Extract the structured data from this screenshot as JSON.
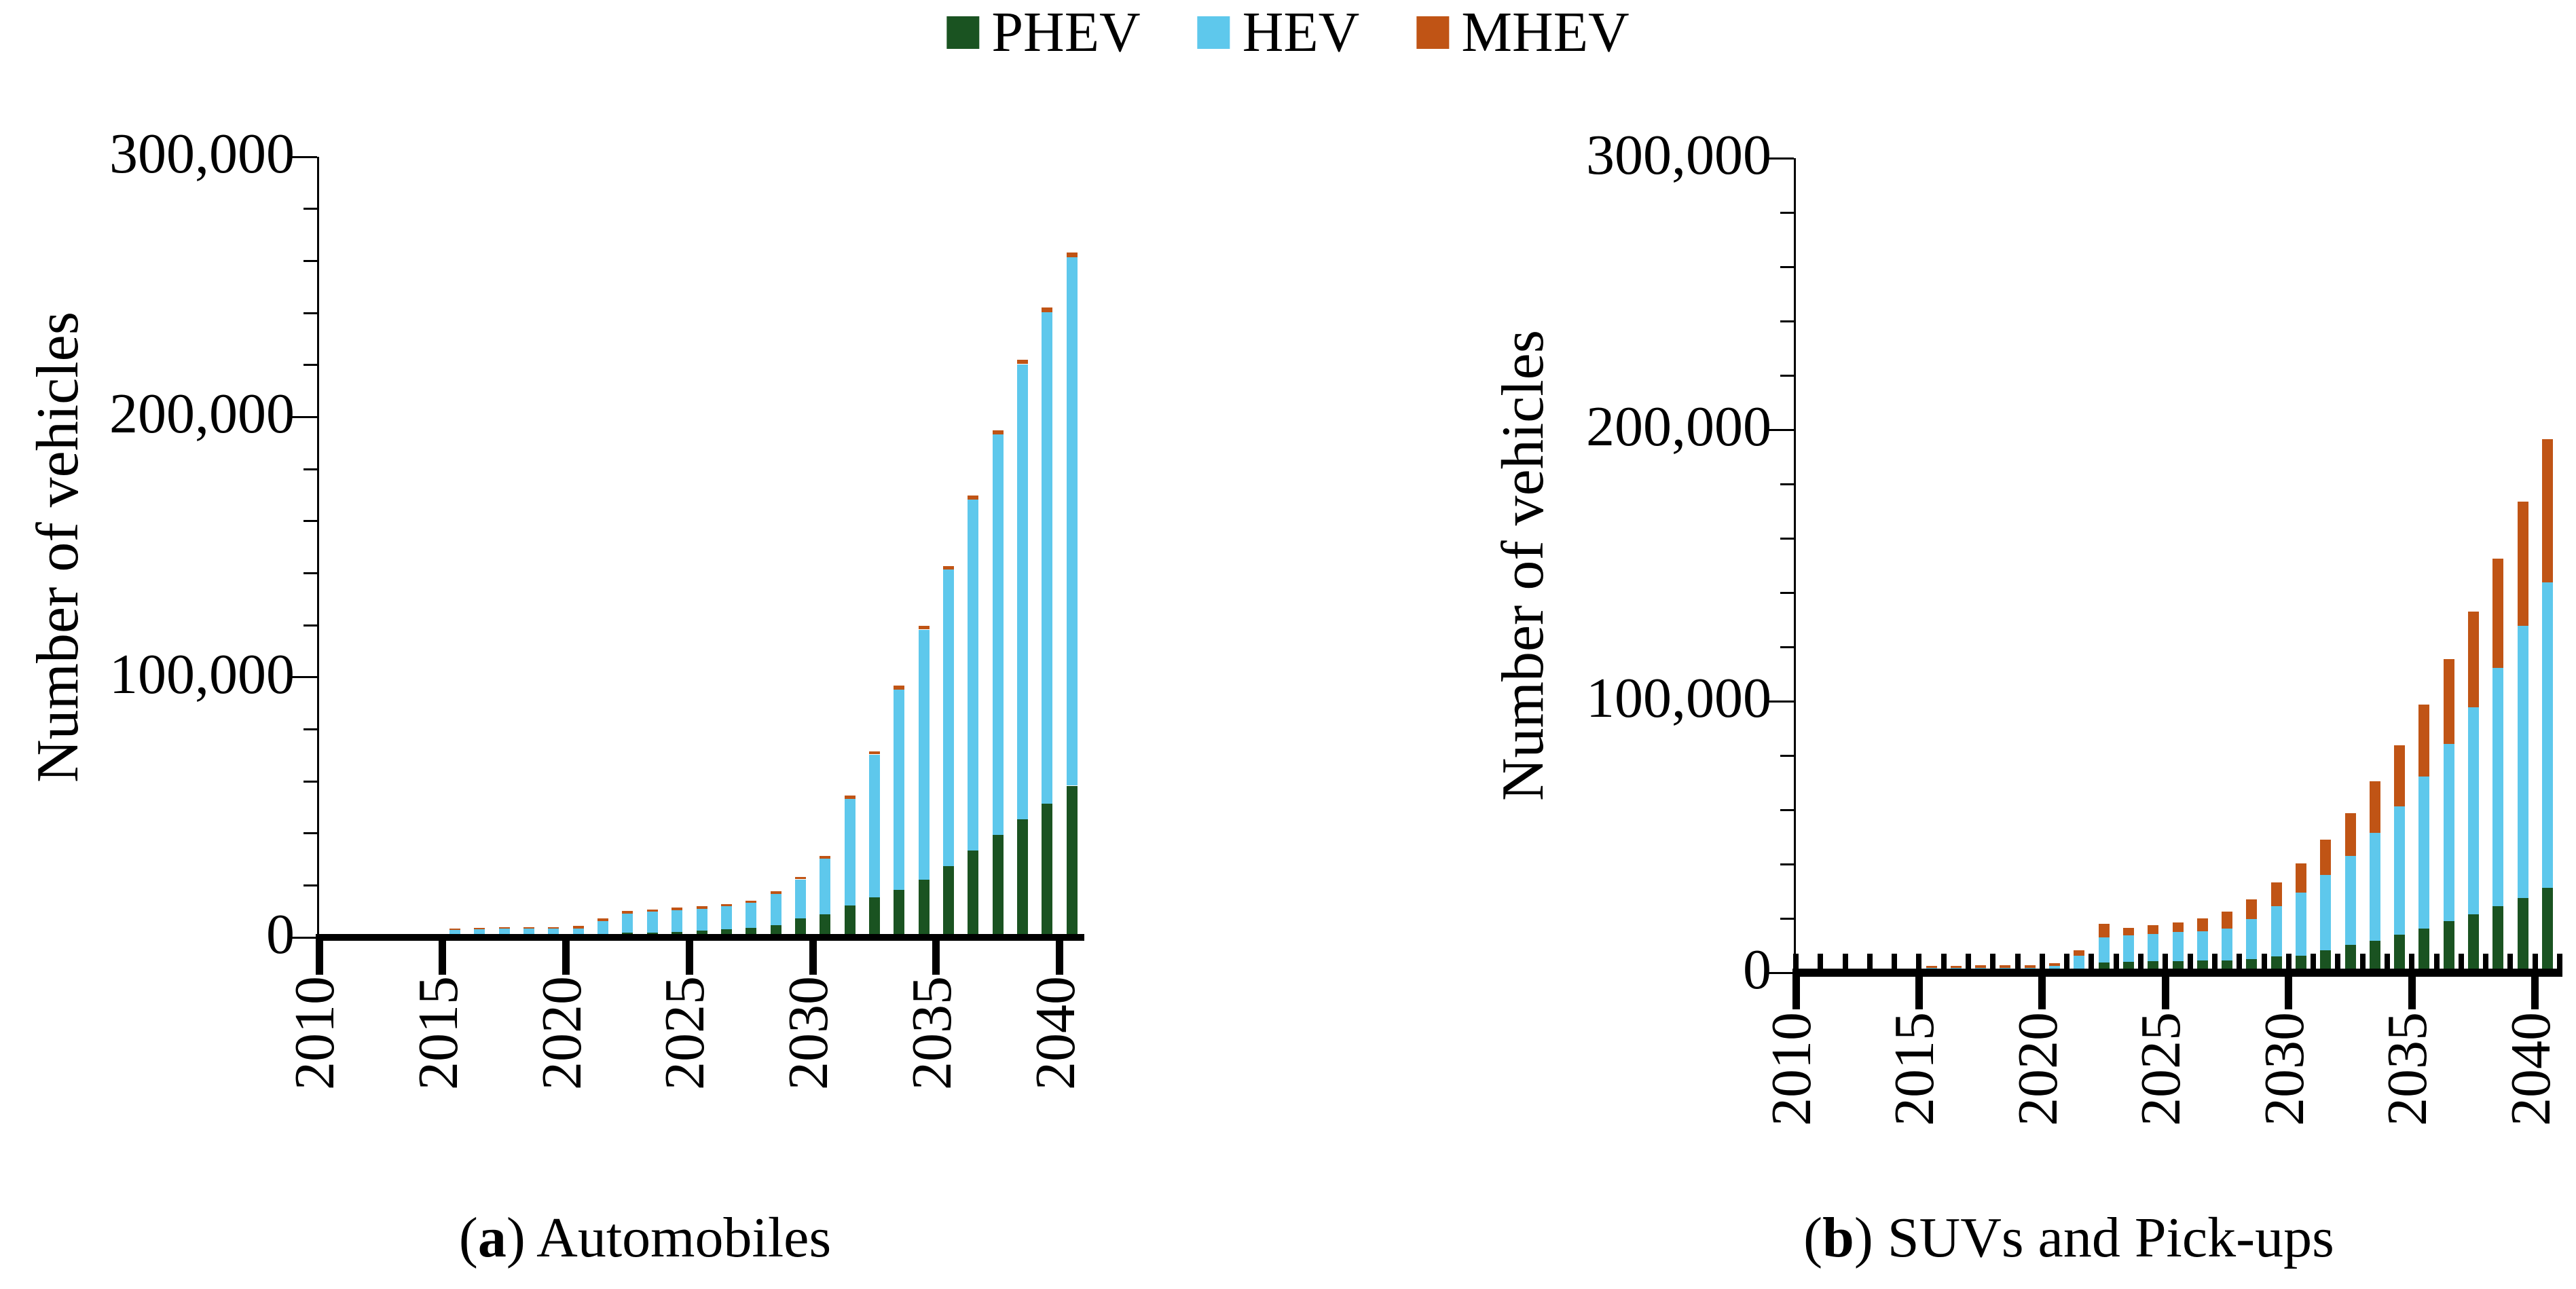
{
  "legend": {
    "items": [
      {
        "label": "PHEV",
        "color": "#1a5321"
      },
      {
        "label": "HEV",
        "color": "#5ec8ec"
      },
      {
        "label": "MHEV",
        "color": "#c05415"
      }
    ]
  },
  "chart_data": [
    {
      "type": "bar",
      "stacked": true,
      "id": "a",
      "caption": {
        "prefix": "(",
        "letter": "a",
        "suffix": ") ",
        "text": "Automobiles"
      },
      "ylabel": "Number of vehicles",
      "ylim": [
        0,
        300000
      ],
      "ytick_step": 100000,
      "yminor_step": 20000,
      "ytick_labels": [
        "0",
        "100,000",
        "200,000",
        "300,000"
      ],
      "years": [
        2010,
        2011,
        2012,
        2013,
        2014,
        2015,
        2016,
        2017,
        2018,
        2019,
        2020,
        2021,
        2022,
        2023,
        2024,
        2025,
        2026,
        2027,
        2028,
        2029,
        2030,
        2031,
        2032,
        2033,
        2034,
        2035,
        2036,
        2037,
        2038,
        2039,
        2040
      ],
      "xtick_labels": [
        "2010",
        "2015",
        "2020",
        "2025",
        "2030",
        "2035",
        "2040"
      ],
      "xtick_every": 5,
      "per_year_ticks": false,
      "grid": false,
      "legend_position": "top-center-shared",
      "series": [
        {
          "name": "PHEV",
          "color": "#1a5321",
          "values": [
            0,
            0,
            0,
            0,
            0,
            0,
            0,
            0,
            0,
            0,
            0,
            0,
            400,
            500,
            700,
            1200,
            1700,
            2400,
            3500,
            6000,
            7500,
            11000,
            14000,
            17000,
            21000,
            26000,
            32000,
            38000,
            44000,
            50000,
            57000
          ]
        },
        {
          "name": "HEV",
          "color": "#5ec8ec",
          "values": [
            0,
            0,
            0,
            0,
            0,
            1600,
            1800,
            2000,
            2000,
            2100,
            2200,
            5000,
            7500,
            8000,
            8500,
            8500,
            9000,
            9500,
            12000,
            15000,
            21500,
            41000,
            55000,
            77000,
            96000,
            114000,
            135000,
            154000,
            175000,
            189000,
            203000
          ]
        },
        {
          "name": "MHEV",
          "color": "#c05415",
          "values": [
            0,
            0,
            0,
            0,
            0,
            500,
            500,
            500,
            500,
            500,
            900,
            1000,
            1000,
            1000,
            1000,
            900,
            900,
            900,
            900,
            900,
            1000,
            1200,
            1200,
            1400,
            1400,
            1500,
            1600,
            1600,
            1800,
            1800,
            2000
          ]
        }
      ]
    },
    {
      "type": "bar",
      "stacked": true,
      "id": "b",
      "caption": {
        "prefix": "(",
        "letter": "b",
        "suffix": ") ",
        "text": "SUVs and Pick-ups"
      },
      "ylabel": "Number of vehicles",
      "ylim": [
        0,
        300000
      ],
      "ytick_step": 100000,
      "yminor_step": 20000,
      "ytick_labels": [
        "0",
        "100,000",
        "200,000",
        "300,000"
      ],
      "years": [
        2010,
        2011,
        2012,
        2013,
        2014,
        2015,
        2016,
        2017,
        2018,
        2019,
        2020,
        2021,
        2022,
        2023,
        2024,
        2025,
        2026,
        2027,
        2028,
        2029,
        2030,
        2031,
        2032,
        2033,
        2034,
        2035,
        2036,
        2037,
        2038,
        2039,
        2040
      ],
      "xtick_labels": [
        "2010",
        "2015",
        "2020",
        "2025",
        "2030",
        "2035",
        "2040"
      ],
      "xtick_every": 5,
      "per_year_ticks": true,
      "grid": false,
      "legend_position": "top-center-shared",
      "series": [
        {
          "name": "PHEV",
          "color": "#1a5321",
          "values": [
            0,
            0,
            0,
            0,
            0,
            0,
            0,
            0,
            0,
            0,
            0,
            0,
            2300,
            2500,
            2800,
            2800,
            3000,
            3000,
            3600,
            4400,
            4800,
            6700,
            8700,
            10300,
            12400,
            14800,
            17400,
            20100,
            23100,
            25900,
            29700
          ]
        },
        {
          "name": "HEV",
          "color": "#5ec8ec",
          "values": [
            0,
            0,
            0,
            0,
            0,
            200,
            200,
            250,
            250,
            300,
            1000,
            4700,
            9300,
            9800,
            9900,
            10600,
            10800,
            11800,
            14600,
            18500,
            23200,
            27700,
            32700,
            39600,
            47300,
            56000,
            65400,
            76100,
            87700,
            100300,
            112500
          ]
        },
        {
          "name": "MHEV",
          "color": "#c05415",
          "values": [
            0,
            0,
            0,
            0,
            0,
            800,
            900,
            900,
            1000,
            1000,
            900,
            2100,
            4800,
            2600,
            3200,
            3700,
            4600,
            6100,
            7300,
            8800,
            10800,
            13000,
            15800,
            19000,
            22500,
            26400,
            31100,
            35300,
            40200,
            45800,
            52800
          ]
        }
      ]
    }
  ]
}
